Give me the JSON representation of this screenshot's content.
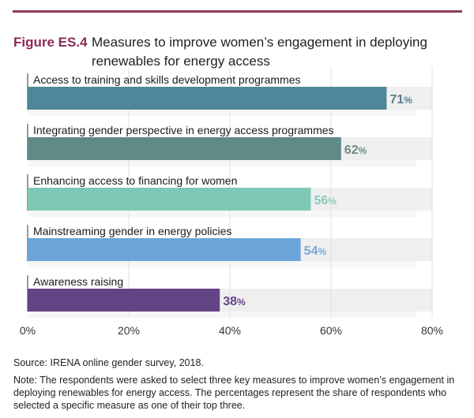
{
  "figure": {
    "number": "Figure ES.4",
    "title": "Measures to improve women’s engagement in deploying renewables for energy access",
    "accent_color": "#8a2b55"
  },
  "chart_data": {
    "type": "bar",
    "orientation": "horizontal",
    "title": "Measures to improve women’s engagement in deploying renewables for energy access",
    "categories": [
      "Access to training and skills development programmes",
      "Integrating gender perspective in energy access programmes",
      "Enhancing access to financing for women",
      "Mainstreaming gender in energy policies",
      "Awareness raising"
    ],
    "values": [
      71,
      62,
      56,
      54,
      38
    ],
    "value_labels": [
      "71",
      "62",
      "56",
      "54",
      "38"
    ],
    "value_suffix": "%",
    "colors": [
      "#4e8799",
      "#5f8a85",
      "#7ec8b6",
      "#6aa4d9",
      "#634586"
    ],
    "label_colors": [
      "#5a7f8a",
      "#6d8a86",
      "#8acbbb",
      "#7aa9d6",
      "#634586"
    ],
    "xlim": [
      0,
      80
    ],
    "xticks": [
      0,
      20,
      40,
      60,
      80
    ],
    "xtick_labels": [
      "0%",
      "20%",
      "40%",
      "60%",
      "80%"
    ],
    "xlabel": "",
    "ylabel": "",
    "grid": true,
    "legend": "none"
  },
  "footer": {
    "source": "Source: IRENA online gender survey, 2018.",
    "note": "Note: The respondents were asked to select three key measures to improve women’s engagement in deploying renewables for energy access. The percentages represent the share of respondents who selected a specific measure as one of their top three."
  }
}
